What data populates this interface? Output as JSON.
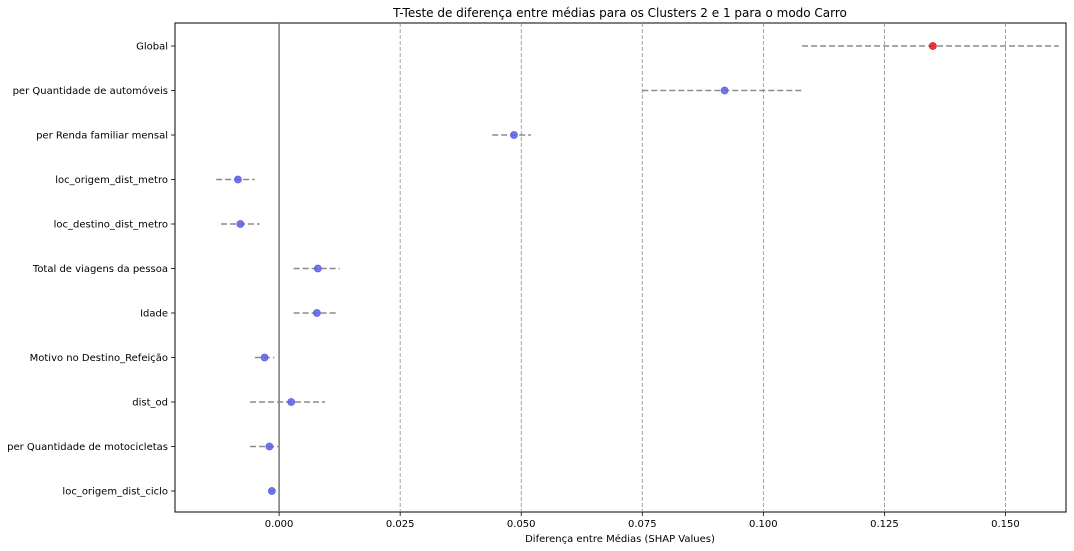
{
  "chart_data": {
    "type": "scatter",
    "title": "T-Teste de diferença entre médias para os Clusters 2 e 1 para o modo Carro",
    "xlabel": "Diferença entre Médias (SHAP Values)",
    "ylabel": "",
    "xlim": [
      -0.0215,
      0.1625
    ],
    "x_ticks": [
      0.0,
      0.025,
      0.05,
      0.075,
      0.1,
      0.125,
      0.15
    ],
    "x_tick_labels": [
      "0.000",
      "0.025",
      "0.050",
      "0.075",
      "0.100",
      "0.125",
      "0.150"
    ],
    "grid": "vertical dashed",
    "zero_line": 0.0,
    "categories": [
      "Global",
      "per Quantidade de automóveis",
      "per Renda familiar mensal",
      "loc_origem_dist_metro",
      "loc_destino_dist_metro",
      "Total de viagens da pessoa",
      "Idade",
      "Motivo no Destino_Refeição",
      "dist_od",
      "per Quantidade de motocicletas",
      "loc_origem_dist_ciclo"
    ],
    "points": [
      {
        "category": "Global",
        "mean": 0.135,
        "ci_low": 0.108,
        "ci_high": 0.161,
        "color": "#e31a1c"
      },
      {
        "category": "per Quantidade de automóveis",
        "mean": 0.092,
        "ci_low": 0.075,
        "ci_high": 0.108,
        "color": "#5a5fe6"
      },
      {
        "category": "per Renda familiar mensal",
        "mean": 0.0485,
        "ci_low": 0.044,
        "ci_high": 0.052,
        "color": "#5a5fe6"
      },
      {
        "category": "loc_origem_dist_metro",
        "mean": -0.0085,
        "ci_low": -0.013,
        "ci_high": -0.005,
        "color": "#5a5fe6"
      },
      {
        "category": "loc_destino_dist_metro",
        "mean": -0.008,
        "ci_low": -0.012,
        "ci_high": -0.004,
        "color": "#5a5fe6"
      },
      {
        "category": "Total de viagens da pessoa",
        "mean": 0.008,
        "ci_low": 0.003,
        "ci_high": 0.0125,
        "color": "#5a5fe6"
      },
      {
        "category": "Idade",
        "mean": 0.0078,
        "ci_low": 0.003,
        "ci_high": 0.012,
        "color": "#5a5fe6"
      },
      {
        "category": "Motivo no Destino_Refeição",
        "mean": -0.003,
        "ci_low": -0.005,
        "ci_high": -0.001,
        "color": "#5a5fe6"
      },
      {
        "category": "dist_od",
        "mean": 0.0025,
        "ci_low": -0.006,
        "ci_high": 0.0095,
        "color": "#5a5fe6"
      },
      {
        "category": "per Quantidade de motocicletas",
        "mean": -0.002,
        "ci_low": -0.006,
        "ci_high": 0.0,
        "color": "#5a5fe6"
      },
      {
        "category": "loc_origem_dist_ciclo",
        "mean": -0.0015,
        "ci_low": -0.002,
        "ci_high": -0.001,
        "color": "#5a5fe6"
      }
    ],
    "colors": {
      "significant_point": "#e31a1c",
      "point": "#5a5fe6",
      "ci_line": "#8c8c8c",
      "grid": "#8c8c8c",
      "zero_line": "#777777"
    }
  }
}
